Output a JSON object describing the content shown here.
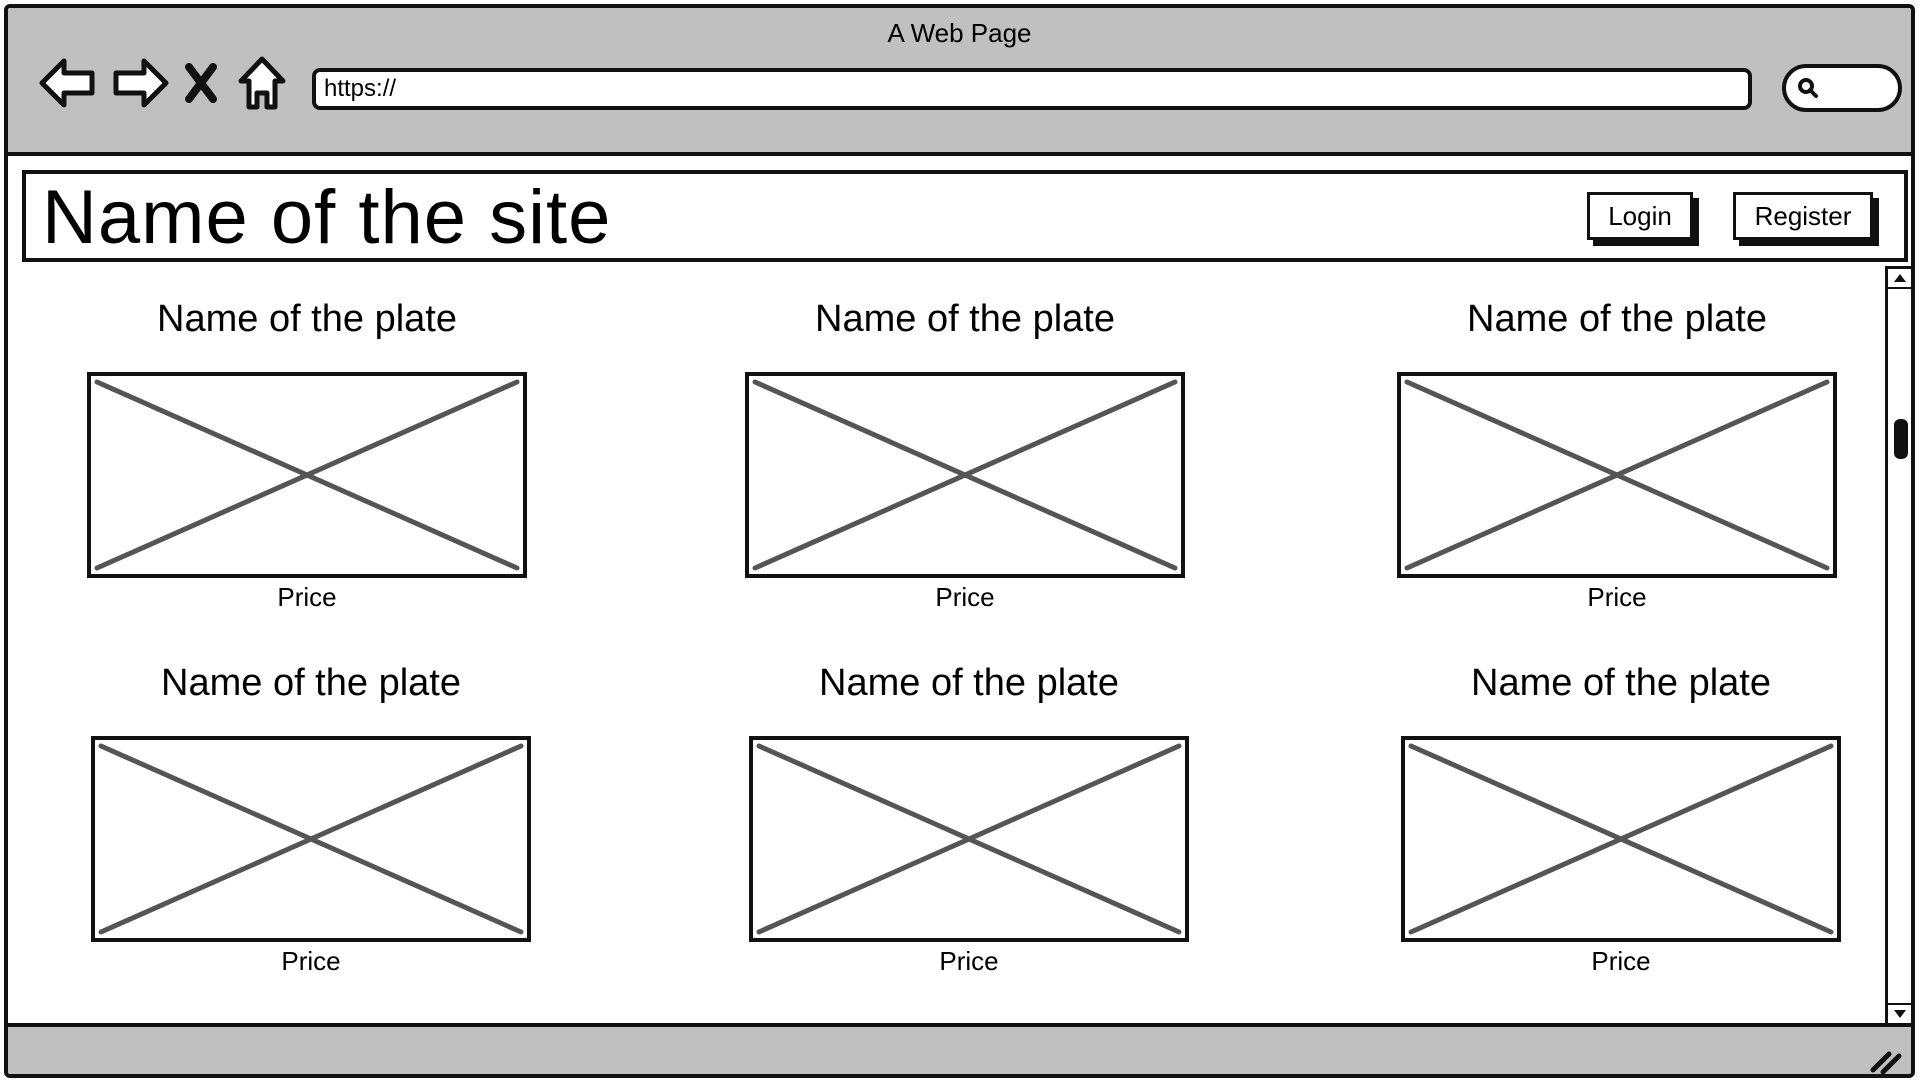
{
  "window": {
    "title": "A Web Page"
  },
  "browser": {
    "url": "https://",
    "back_icon": "back-arrow-icon",
    "forward_icon": "forward-arrow-icon",
    "stop_icon": "close-icon",
    "home_icon": "home-icon",
    "search_icon": "search-icon"
  },
  "site": {
    "name": "Name of the site",
    "login_label": "Login",
    "register_label": "Register"
  },
  "plates": [
    {
      "name": "Name of the plate",
      "price": "Price"
    },
    {
      "name": "Name of the plate",
      "price": "Price"
    },
    {
      "name": "Name of the plate",
      "price": "Price"
    },
    {
      "name": "Name of the plate",
      "price": "Price"
    },
    {
      "name": "Name of the plate",
      "price": "Price"
    },
    {
      "name": "Name of the plate",
      "price": "Price"
    }
  ],
  "colors": {
    "chrome": "#c0c0c0",
    "ink": "#111111",
    "placeholder_cross": "#555555"
  }
}
